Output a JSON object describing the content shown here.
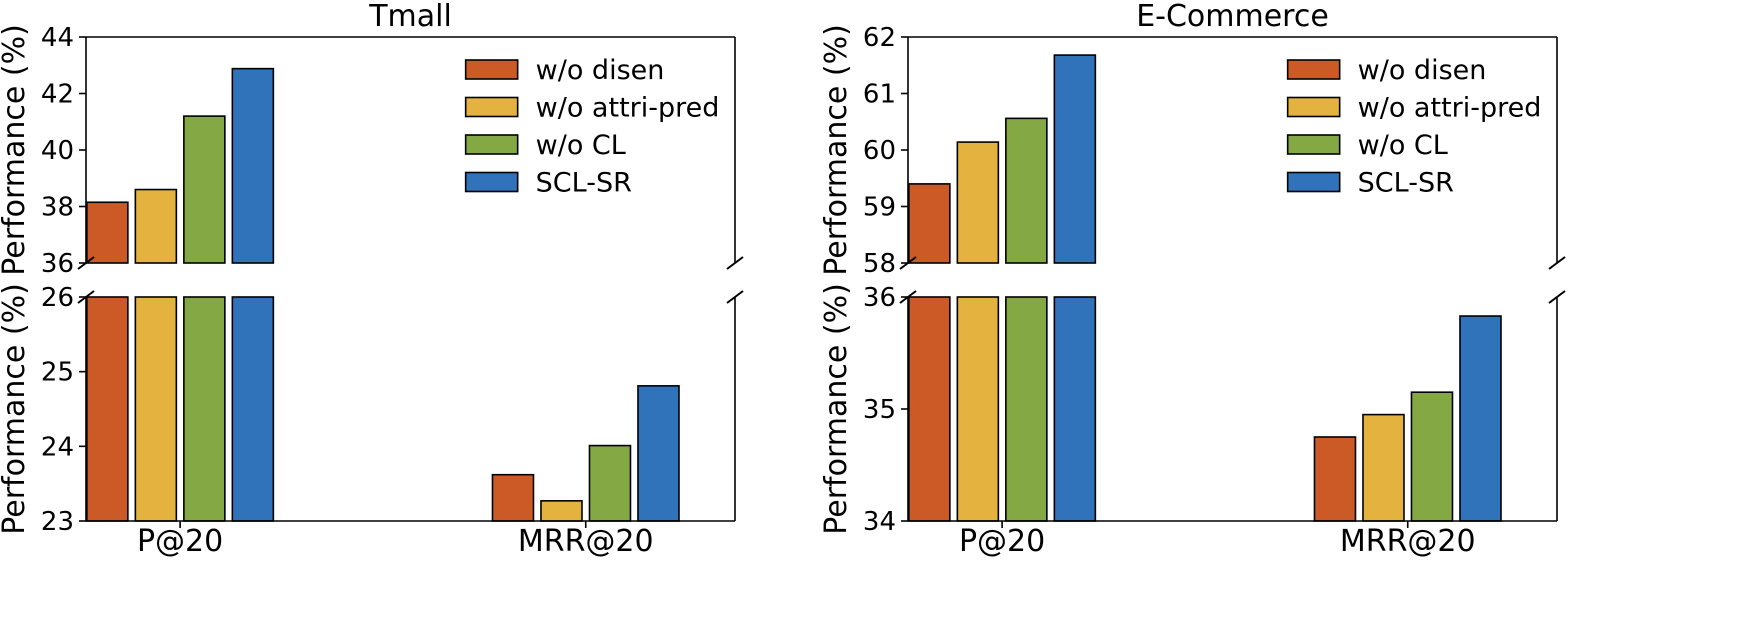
{
  "colors": {
    "w/o disen": "#cc5a27",
    "w/o attri-pred": "#e4b23f",
    "w/o CL": "#84a843",
    "SCL-SR": "#3073ba"
  },
  "chart_data": [
    {
      "type": "bar",
      "title": "Tmall",
      "ylabel": "Performance (%)",
      "xlabel": "",
      "categories": [
        "P@20",
        "MRR@20"
      ],
      "broken_axis": true,
      "upper_ylim": [
        36,
        44
      ],
      "upper_yticks": [
        36,
        38,
        40,
        42,
        44
      ],
      "lower_ylim": [
        23,
        26
      ],
      "lower_yticks": [
        23,
        24,
        25,
        26
      ],
      "legend_position": "upper-right",
      "grid": false,
      "series": [
        {
          "name": "w/o disen",
          "values": [
            38.15,
            23.62
          ]
        },
        {
          "name": "w/o attri-pred",
          "values": [
            38.6,
            23.27
          ]
        },
        {
          "name": "w/o CL",
          "values": [
            41.2,
            24.01
          ]
        },
        {
          "name": "SCL-SR",
          "values": [
            42.88,
            24.81
          ]
        }
      ]
    },
    {
      "type": "bar",
      "title": "E-Commerce",
      "ylabel": "Performance (%)",
      "xlabel": "",
      "categories": [
        "P@20",
        "MRR@20"
      ],
      "broken_axis": true,
      "upper_ylim": [
        58,
        62
      ],
      "upper_yticks": [
        58,
        59,
        60,
        61,
        62
      ],
      "lower_ylim": [
        34,
        36
      ],
      "lower_yticks": [
        34,
        35,
        36
      ],
      "legend_position": "upper-right",
      "grid": false,
      "series": [
        {
          "name": "w/o disen",
          "values": [
            59.4,
            34.75
          ]
        },
        {
          "name": "w/o attri-pred",
          "values": [
            60.14,
            34.95
          ]
        },
        {
          "name": "w/o CL",
          "values": [
            60.56,
            35.15
          ]
        },
        {
          "name": "SCL-SR",
          "values": [
            61.68,
            35.83
          ]
        }
      ]
    }
  ]
}
